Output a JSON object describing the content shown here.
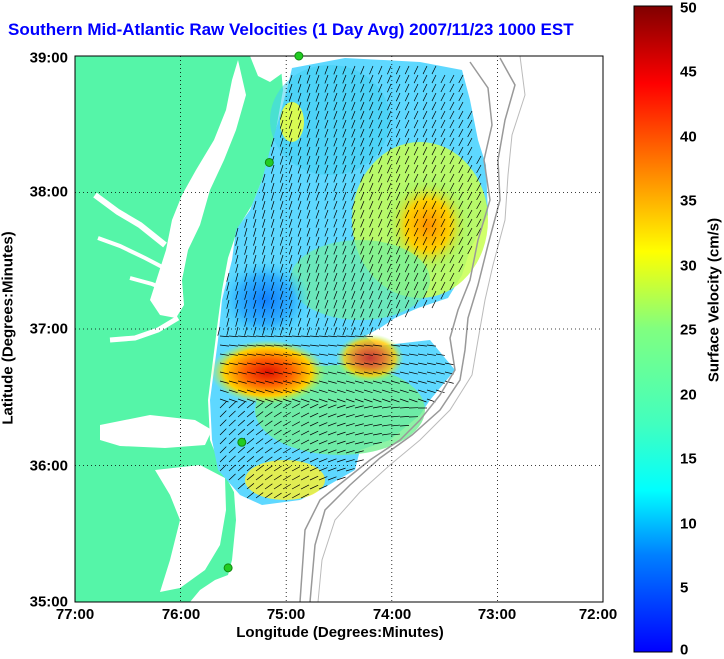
{
  "title": "Southern Mid-Atlantic Raw Velocities (1 Day Avg) 2007/11/23 1000 EST",
  "xlabel": "Longitude (Degrees:Minutes)",
  "ylabel": "Latitude (Degrees:Minutes)",
  "colorbar_label": "Surface Velocity (cm/s)",
  "x_ticks": [
    "77:00",
    "76:00",
    "75:00",
    "74:00",
    "73:00",
    "72:00"
  ],
  "y_ticks": [
    "39:00",
    "38:00",
    "37:00",
    "36:00",
    "35:00"
  ],
  "colorbar_ticks": [
    "50",
    "45",
    "40",
    "35",
    "30",
    "25",
    "20",
    "15",
    "10",
    "5",
    "0"
  ],
  "colors": {
    "land": "#55f5a8",
    "water": "#ffffff",
    "title": "#0000ff",
    "station": "#22cc22",
    "bathymetry": "#999999"
  },
  "map": {
    "lon_range": [
      -77,
      -72
    ],
    "lat_range": [
      35,
      39
    ],
    "grid": true,
    "colorbar_range": [
      0,
      50
    ],
    "colormap": "jet",
    "stations": [
      {
        "lon": -74.88,
        "lat": 39.0
      },
      {
        "lon": -75.16,
        "lat": 38.22
      },
      {
        "lon": -75.42,
        "lat": 36.17
      },
      {
        "lon": -75.55,
        "lat": 35.25
      }
    ]
  }
}
